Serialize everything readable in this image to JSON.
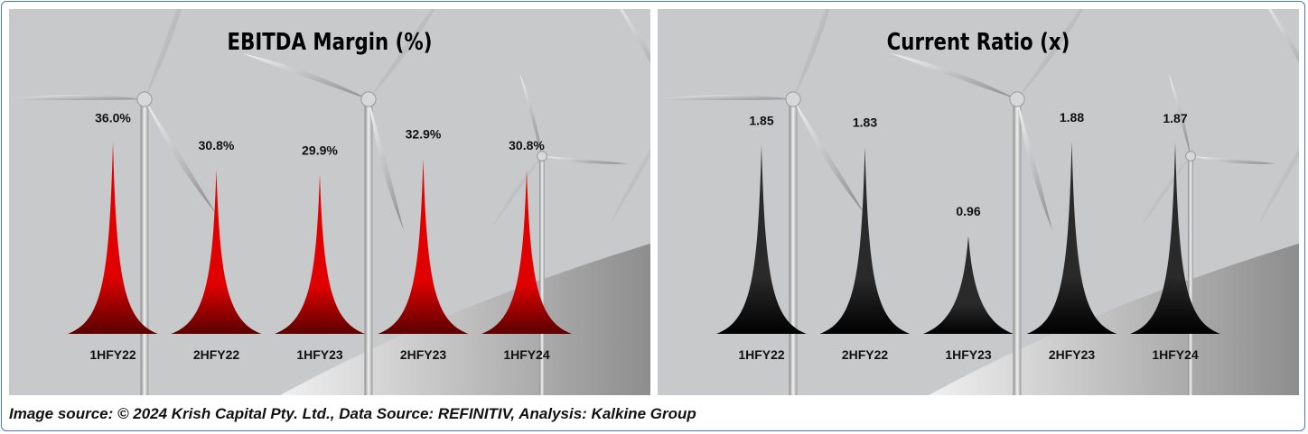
{
  "caption": "Image source: © 2024 Krish Capital Pty. Ltd., Data Source: REFINITIV, Analysis: Kalkine Group",
  "chart_data": [
    {
      "type": "bar",
      "title": "EBITDA Margin (%)",
      "categories": [
        "1HFY22",
        "2HFY22",
        "1HFY23",
        "2HFY23",
        "1HFY24"
      ],
      "values": [
        36.0,
        30.8,
        29.9,
        32.9,
        30.8
      ],
      "labels": [
        "36.0%",
        "30.8%",
        "29.9%",
        "32.9%",
        "30.8%"
      ],
      "xlabel": "",
      "ylabel": "",
      "ylim": [
        0,
        38
      ],
      "color": "#e00000",
      "color_dark": "#5a0000"
    },
    {
      "type": "bar",
      "title": "Current Ratio (x)",
      "categories": [
        "1HFY22",
        "2HFY22",
        "1HFY23",
        "2HFY23",
        "1HFY24"
      ],
      "values": [
        1.85,
        1.83,
        0.96,
        1.88,
        1.87
      ],
      "labels": [
        "1.85",
        "1.83",
        "0.96",
        "1.88",
        "1.87"
      ],
      "xlabel": "",
      "ylabel": "",
      "ylim": [
        0,
        1.98
      ],
      "color": "#2a2a2a",
      "color_dark": "#000000"
    }
  ]
}
